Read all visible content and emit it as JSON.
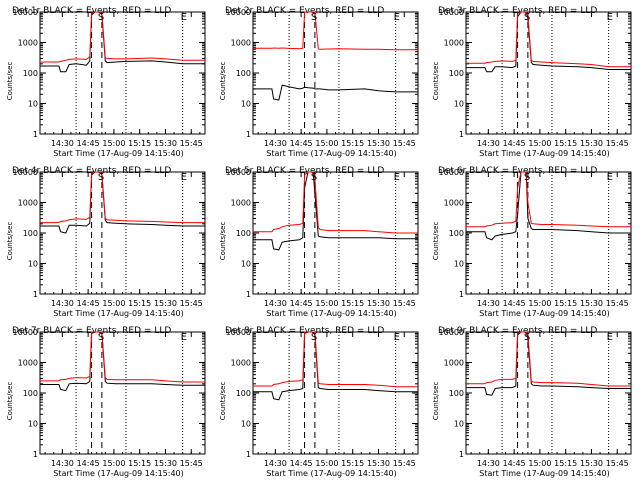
{
  "chart_data": [
    {
      "type": "line",
      "title": "Det 1r BLACK = Events, RED = LLD",
      "xlabel": "Start Time (17-Aug-09 14:15:40)",
      "ylabel": "Counts/sec",
      "xlim": [
        "14:17",
        "15:53"
      ],
      "ylim": [
        1,
        10000
      ],
      "yscale": "log",
      "xticks": [
        "14:30",
        "14:45",
        "15:00",
        "15:15",
        "15:30",
        "15:45"
      ],
      "yticks": [
        "1",
        "10",
        "100",
        "1000",
        "10000"
      ],
      "markers": [
        "S",
        "E"
      ],
      "x": [
        "14:17",
        "14:28",
        "14:29",
        "14:32",
        "14:34",
        "14:38",
        "14:44",
        "14:46",
        "14:47",
        "14:49",
        "14:52",
        "14:53",
        "14:55",
        "14:56",
        "15:01",
        "15:07",
        "15:22",
        "15:30",
        "15:40",
        "15:53"
      ],
      "series": [
        {
          "color": "#000000",
          "values": [
            170,
            170,
            110,
            110,
            190,
            200,
            180,
            250,
            8000,
            10000,
            10000,
            8000,
            250,
            220,
            230,
            240,
            250,
            230,
            200,
            200
          ]
        },
        {
          "color": "#ff0000",
          "values": [
            230,
            230,
            240,
            260,
            280,
            290,
            280,
            340,
            9000,
            10000,
            10000,
            9000,
            320,
            300,
            290,
            290,
            310,
            290,
            260,
            260
          ]
        }
      ]
    },
    {
      "type": "line",
      "title": "Det 2r BLACK = Events, RED = LLD",
      "xlabel": "Start Time (17-Aug-09 14:15:40)",
      "ylabel": "Counts/sec",
      "xlim": [
        "14:17",
        "15:53"
      ],
      "ylim": [
        1,
        10000
      ],
      "yscale": "log",
      "xticks": [
        "14:30",
        "14:45",
        "15:00",
        "15:15",
        "15:30",
        "15:45"
      ],
      "yticks": [
        "1",
        "10",
        "100",
        "1000",
        "10000"
      ],
      "markers": [
        "S",
        "E"
      ],
      "x": [
        "14:17",
        "14:28",
        "14:29",
        "14:32",
        "14:34",
        "14:38",
        "14:44",
        "14:46",
        "14:47",
        "14:49",
        "14:52",
        "14:53",
        "14:55",
        "14:56",
        "15:01",
        "15:07",
        "15:22",
        "15:30",
        "15:40",
        "15:53"
      ],
      "series": [
        {
          "color": "#000000",
          "values": [
            30,
            30,
            14,
            13,
            40,
            35,
            30,
            32,
            34,
            33,
            32,
            30,
            30,
            30,
            28,
            28,
            30,
            26,
            24,
            24
          ]
        },
        {
          "color": "#ff0000",
          "values": [
            650,
            650,
            660,
            650,
            660,
            640,
            620,
            650,
            10000,
            10000,
            10000,
            10000,
            620,
            600,
            610,
            620,
            600,
            600,
            580,
            580
          ]
        }
      ]
    },
    {
      "type": "line",
      "title": "Det 3r BLACK = Events, RED = LLD",
      "xlabel": "Start Time (17-Aug-09 14:15:40)",
      "ylabel": "Counts/sec",
      "xlim": [
        "14:17",
        "15:53"
      ],
      "ylim": [
        1,
        10000
      ],
      "yscale": "log",
      "xticks": [
        "14:30",
        "14:45",
        "15:00",
        "15:15",
        "15:30",
        "15:45"
      ],
      "yticks": [
        "1",
        "10",
        "100",
        "1000",
        "10000"
      ],
      "markers": [
        "S",
        "E"
      ],
      "x": [
        "14:17",
        "14:28",
        "14:29",
        "14:32",
        "14:34",
        "14:38",
        "14:44",
        "14:46",
        "14:47",
        "14:49",
        "14:52",
        "14:53",
        "14:55",
        "14:56",
        "15:01",
        "15:07",
        "15:22",
        "15:30",
        "15:40",
        "15:53"
      ],
      "series": [
        {
          "color": "#000000",
          "values": [
            150,
            150,
            110,
            110,
            160,
            160,
            150,
            170,
            7000,
            10000,
            10000,
            6000,
            220,
            190,
            180,
            170,
            160,
            150,
            130,
            130
          ]
        },
        {
          "color": "#ff0000",
          "values": [
            210,
            210,
            220,
            230,
            240,
            250,
            240,
            260,
            9000,
            10000,
            10000,
            8000,
            260,
            240,
            230,
            220,
            200,
            190,
            160,
            160
          ]
        }
      ]
    },
    {
      "type": "line",
      "title": "Det 4r BLACK = Events, RED = LLD",
      "xlabel": "Start Time (17-Aug-09 14:15:40)",
      "ylabel": "Counts/sec",
      "xlim": [
        "14:17",
        "15:53"
      ],
      "ylim": [
        1,
        10000
      ],
      "yscale": "log",
      "xticks": [
        "14:30",
        "14:45",
        "15:00",
        "15:15",
        "15:30",
        "15:45"
      ],
      "yticks": [
        "1",
        "10",
        "100",
        "1000",
        "10000"
      ],
      "markers": [
        "S",
        "E"
      ],
      "x": [
        "14:17",
        "14:28",
        "14:29",
        "14:32",
        "14:34",
        "14:38",
        "14:44",
        "14:46",
        "14:47",
        "14:49",
        "14:52",
        "14:53",
        "14:55",
        "14:56",
        "15:01",
        "15:07",
        "15:22",
        "15:30",
        "15:40",
        "15:53"
      ],
      "series": [
        {
          "color": "#000000",
          "values": [
            170,
            170,
            110,
            100,
            180,
            180,
            170,
            210,
            8000,
            10000,
            10000,
            8000,
            260,
            220,
            210,
            200,
            190,
            180,
            170,
            170
          ]
        },
        {
          "color": "#ff0000",
          "values": [
            220,
            220,
            240,
            250,
            270,
            290,
            280,
            330,
            9000,
            10000,
            10000,
            9000,
            300,
            270,
            260,
            250,
            240,
            230,
            220,
            220
          ]
        }
      ]
    },
    {
      "type": "line",
      "title": "Det 5r BLACK = Events, RED = LLD",
      "xlabel": "Start Time (17-Aug-09 14:15:40)",
      "ylabel": "Counts/sec",
      "xlim": [
        "14:17",
        "15:53"
      ],
      "ylim": [
        1,
        10000
      ],
      "yscale": "log",
      "xticks": [
        "14:30",
        "14:45",
        "15:00",
        "15:15",
        "15:30",
        "15:45"
      ],
      "yticks": [
        "1",
        "10",
        "100",
        "1000",
        "10000"
      ],
      "markers": [
        "S",
        "E"
      ],
      "x": [
        "14:17",
        "14:28",
        "14:29",
        "14:32",
        "14:34",
        "14:38",
        "14:44",
        "14:46",
        "14:47",
        "14:49",
        "14:52",
        "14:53",
        "14:55",
        "14:56",
        "15:01",
        "15:07",
        "15:22",
        "15:30",
        "15:40",
        "15:53"
      ],
      "series": [
        {
          "color": "#000000",
          "values": [
            60,
            60,
            30,
            28,
            50,
            55,
            60,
            70,
            3000,
            10000,
            10000,
            2000,
            80,
            75,
            70,
            70,
            70,
            70,
            65,
            65
          ]
        },
        {
          "color": "#ff0000",
          "values": [
            110,
            110,
            130,
            140,
            160,
            180,
            190,
            210,
            8000,
            10000,
            10000,
            6000,
            150,
            130,
            120,
            120,
            120,
            110,
            100,
            100
          ]
        }
      ]
    },
    {
      "type": "line",
      "title": "Det 6r BLACK = Events, RED = LLD",
      "xlabel": "Start Time (17-Aug-09 14:15:40)",
      "ylabel": "Counts/sec",
      "xlim": [
        "14:17",
        "15:53"
      ],
      "ylim": [
        1,
        10000
      ],
      "yscale": "log",
      "xticks": [
        "14:30",
        "14:45",
        "15:00",
        "15:15",
        "15:30",
        "15:45"
      ],
      "yticks": [
        "1",
        "10",
        "100",
        "1000",
        "10000"
      ],
      "markers": [
        "S",
        "E"
      ],
      "x": [
        "14:17",
        "14:28",
        "14:29",
        "14:32",
        "14:34",
        "14:38",
        "14:44",
        "14:46",
        "14:47",
        "14:49",
        "14:52",
        "14:53",
        "14:55",
        "14:56",
        "15:01",
        "15:07",
        "15:22",
        "15:30",
        "15:40",
        "15:53"
      ],
      "series": [
        {
          "color": "#000000",
          "values": [
            110,
            110,
            70,
            60,
            80,
            90,
            100,
            110,
            400,
            10000,
            10000,
            300,
            140,
            130,
            130,
            130,
            120,
            110,
            100,
            100
          ]
        },
        {
          "color": "#ff0000",
          "values": [
            160,
            160,
            170,
            180,
            200,
            210,
            220,
            240,
            3000,
            10000,
            10000,
            1000,
            210,
            200,
            190,
            190,
            180,
            170,
            160,
            160
          ]
        }
      ]
    },
    {
      "type": "line",
      "title": "Det 7r BLACK = Events, RED = LLD",
      "xlabel": "Start Time (17-Aug-09 14:15:40)",
      "ylabel": "Counts/sec",
      "xlim": [
        "14:17",
        "15:53"
      ],
      "ylim": [
        1,
        10000
      ],
      "yscale": "log",
      "xticks": [
        "14:30",
        "14:45",
        "15:00",
        "15:15",
        "15:30",
        "15:45"
      ],
      "yticks": [
        "1",
        "10",
        "100",
        "1000",
        "10000"
      ],
      "markers": [
        "S",
        "E"
      ],
      "x": [
        "14:17",
        "14:28",
        "14:29",
        "14:32",
        "14:34",
        "14:38",
        "14:44",
        "14:46",
        "14:47",
        "14:49",
        "14:52",
        "14:53",
        "14:55",
        "14:56",
        "15:01",
        "15:07",
        "15:22",
        "15:30",
        "15:40",
        "15:53"
      ],
      "series": [
        {
          "color": "#000000",
          "values": [
            190,
            190,
            130,
            120,
            200,
            210,
            200,
            240,
            9000,
            10000,
            10000,
            9000,
            240,
            210,
            200,
            200,
            200,
            190,
            180,
            180
          ]
        },
        {
          "color": "#ff0000",
          "values": [
            250,
            250,
            270,
            280,
            300,
            320,
            310,
            350,
            10000,
            10000,
            10000,
            10000,
            320,
            280,
            270,
            270,
            270,
            250,
            230,
            230
          ]
        }
      ]
    },
    {
      "type": "line",
      "title": "Det 8r BLACK = Events, RED = LLD",
      "xlabel": "Start Time (17-Aug-09 14:15:40)",
      "ylabel": "Counts/sec",
      "xlim": [
        "14:17",
        "15:53"
      ],
      "ylim": [
        1,
        10000
      ],
      "yscale": "log",
      "xticks": [
        "14:30",
        "14:45",
        "15:00",
        "15:15",
        "15:30",
        "15:45"
      ],
      "yticks": [
        "1",
        "10",
        "100",
        "1000",
        "10000"
      ],
      "markers": [
        "S",
        "E"
      ],
      "x": [
        "14:17",
        "14:28",
        "14:29",
        "14:32",
        "14:34",
        "14:38",
        "14:44",
        "14:46",
        "14:47",
        "14:49",
        "14:52",
        "14:53",
        "14:55",
        "14:56",
        "15:01",
        "15:07",
        "15:22",
        "15:30",
        "15:40",
        "15:53"
      ],
      "series": [
        {
          "color": "#000000",
          "values": [
            110,
            110,
            65,
            60,
            110,
            120,
            130,
            140,
            9000,
            10000,
            10000,
            8000,
            150,
            140,
            130,
            130,
            130,
            120,
            110,
            110
          ]
        },
        {
          "color": "#ff0000",
          "values": [
            170,
            170,
            190,
            200,
            220,
            240,
            250,
            270,
            10000,
            10000,
            10000,
            10000,
            220,
            200,
            190,
            190,
            190,
            180,
            160,
            160
          ]
        }
      ]
    },
    {
      "type": "line",
      "title": "Det 9r BLACK = Events, RED = LLD",
      "xlabel": "Start Time (17-Aug-09 14:15:40)",
      "ylabel": "Counts/sec",
      "xlim": [
        "14:17",
        "15:53"
      ],
      "ylim": [
        1,
        10000
      ],
      "yscale": "log",
      "xticks": [
        "14:30",
        "14:45",
        "15:00",
        "15:15",
        "15:30",
        "15:45"
      ],
      "yticks": [
        "1",
        "10",
        "100",
        "1000",
        "10000"
      ],
      "markers": [
        "S",
        "E"
      ],
      "x": [
        "14:17",
        "14:28",
        "14:29",
        "14:32",
        "14:34",
        "14:38",
        "14:44",
        "14:46",
        "14:47",
        "14:49",
        "14:52",
        "14:53",
        "14:55",
        "14:56",
        "15:01",
        "15:07",
        "15:22",
        "15:30",
        "15:40",
        "15:53"
      ],
      "series": [
        {
          "color": "#000000",
          "values": [
            150,
            150,
            90,
            85,
            140,
            150,
            150,
            170,
            8000,
            10000,
            10000,
            6000,
            200,
            180,
            170,
            170,
            160,
            150,
            140,
            140
          ]
        },
        {
          "color": "#ff0000",
          "values": [
            200,
            200,
            220,
            230,
            260,
            280,
            280,
            300,
            9000,
            10000,
            10000,
            9000,
            250,
            230,
            220,
            220,
            210,
            190,
            170,
            170
          ]
        }
      ]
    }
  ]
}
